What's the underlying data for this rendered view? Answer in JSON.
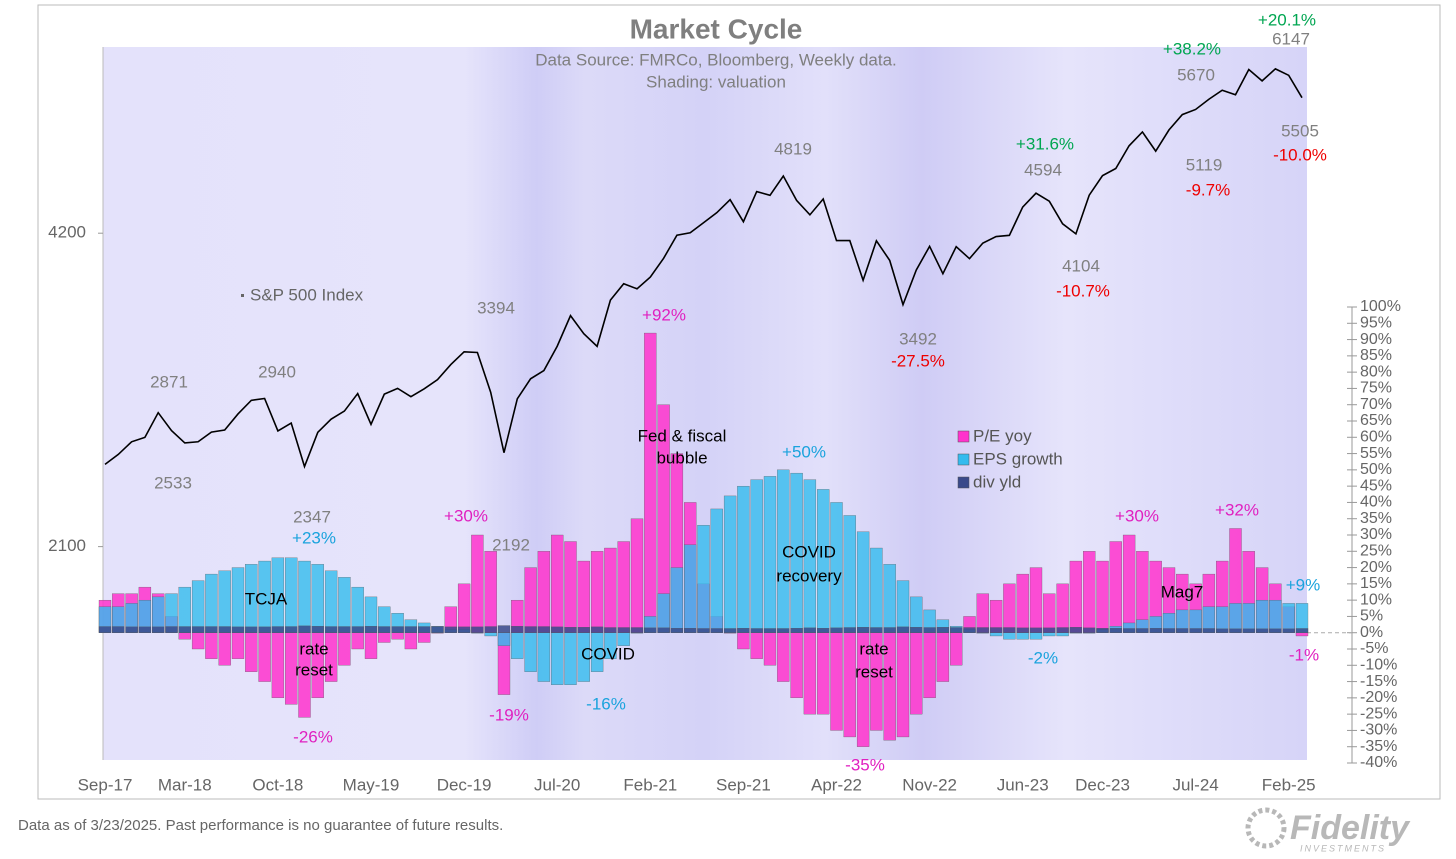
{
  "chart_data": {
    "type": "combo",
    "title": "Market Cycle",
    "subtitle": [
      "Data Source: FMRCo, Bloomberg,  Weekly data.",
      "Shading: valuation"
    ],
    "categories": [
      "Sep-17",
      null,
      null,
      null,
      null,
      null,
      "Mar-18",
      null,
      null,
      null,
      null,
      null,
      null,
      "Oct-18",
      null,
      null,
      null,
      null,
      null,
      null,
      "May-19",
      null,
      null,
      null,
      null,
      null,
      null,
      "Dec-19",
      null,
      null,
      null,
      null,
      null,
      null,
      "Jul-20",
      null,
      null,
      null,
      null,
      null,
      null,
      "Feb-21",
      null,
      null,
      null,
      null,
      null,
      null,
      "Sep-21",
      null,
      null,
      null,
      null,
      null,
      null,
      "Apr-22",
      null,
      null,
      null,
      null,
      null,
      null,
      "Nov-22",
      null,
      null,
      null,
      null,
      null,
      null,
      "Jun-23",
      null,
      null,
      null,
      null,
      null,
      "Dec-23",
      null,
      null,
      null,
      null,
      null,
      null,
      "Jul-24",
      null,
      null,
      null,
      null,
      null,
      null,
      "Feb-25",
      null
    ],
    "ylim": [
      1310,
      6340
    ],
    "ylog": true,
    "yticks": [
      2100,
      4200
    ],
    "y2lim": [
      -40,
      100
    ],
    "y2ticks": [
      {
        "value": -40,
        "label": "-40%"
      },
      {
        "value": -35,
        "label": "-35%"
      },
      {
        "value": -30,
        "label": "-30%"
      },
      {
        "value": -25,
        "label": "-25%"
      },
      {
        "value": -20,
        "label": "-20%"
      },
      {
        "value": -15,
        "label": "-15%"
      },
      {
        "value": -10,
        "label": "-10%"
      },
      {
        "value": -5,
        "label": "-5%"
      },
      {
        "value": 0,
        "label": "0%"
      },
      {
        "value": 5,
        "label": "5%"
      },
      {
        "value": 10,
        "label": "10%"
      },
      {
        "value": 15,
        "label": "15%"
      },
      {
        "value": 20,
        "label": "20%"
      },
      {
        "value": 25,
        "label": "25%"
      },
      {
        "value": 30,
        "label": "30%"
      },
      {
        "value": 35,
        "label": "35%"
      },
      {
        "value": 40,
        "label": "40%"
      },
      {
        "value": 45,
        "label": "45%"
      },
      {
        "value": 50,
        "label": "50%"
      },
      {
        "value": 55,
        "label": "55%"
      },
      {
        "value": 60,
        "label": "60%"
      },
      {
        "value": 65,
        "label": "65%"
      },
      {
        "value": 70,
        "label": "70%"
      },
      {
        "value": 75,
        "label": "75%"
      },
      {
        "value": 80,
        "label": "80%"
      },
      {
        "value": 85,
        "label": "85%"
      },
      {
        "value": 90,
        "label": "90%"
      },
      {
        "value": 95,
        "label": "95%"
      },
      {
        "value": 100,
        "label": "100%"
      }
    ],
    "series": [
      {
        "name": "S&P 500 Index",
        "type": "line",
        "color": "#000000",
        "values": [
          2519,
          2575,
          2648,
          2674,
          2824,
          2714,
          2641,
          2648,
          2705,
          2718,
          2816,
          2902,
          2914,
          2712,
          2760,
          2507,
          2704,
          2784,
          2834,
          2946,
          2752,
          2942,
          2980,
          2926,
          2977,
          3038,
          3141,
          3231,
          3226,
          2954,
          2585,
          2912,
          3044,
          3100,
          3271,
          3500,
          3363,
          3270,
          3622,
          3756,
          3714,
          3811,
          3973,
          4181,
          4204,
          4298,
          4395,
          4523,
          4308,
          4605,
          4567,
          4766,
          4516,
          4374,
          4530,
          4132,
          4132,
          3785,
          4130,
          3955,
          3586,
          3872,
          4080,
          3840,
          4077,
          3970,
          4109,
          4169,
          4180,
          4450,
          4589,
          4508,
          4288,
          4194,
          4568,
          4770,
          4846,
          5096,
          5254,
          5036,
          5278,
          5460,
          5522,
          5648,
          5762,
          5705,
          6032,
          5882,
          6041,
          5955,
          5668
        ]
      },
      {
        "name": "P/E yoy",
        "type": "bar",
        "axis": "y2",
        "color": "#ff33cc",
        "values": [
          10,
          12,
          12,
          14,
          12,
          5,
          -2,
          -5,
          -8,
          -10,
          -8,
          -12,
          -15,
          -20,
          -22,
          -26,
          -20,
          -15,
          -10,
          -5,
          -8,
          -3,
          -2,
          -5,
          -3,
          0,
          8,
          15,
          30,
          25,
          -19,
          10,
          20,
          25,
          30,
          28,
          22,
          25,
          26,
          28,
          35,
          92,
          70,
          55,
          40,
          15,
          5,
          0,
          -5,
          -8,
          -10,
          -15,
          -20,
          -25,
          -25,
          -30,
          -32,
          -35,
          -30,
          -33,
          -32,
          -25,
          -20,
          -15,
          -10,
          5,
          12,
          10,
          15,
          18,
          20,
          12,
          15,
          22,
          25,
          22,
          28,
          30,
          25,
          22,
          20,
          18,
          15,
          18,
          22,
          32,
          25,
          20,
          15,
          8,
          -1
        ]
      },
      {
        "name": "EPS growth",
        "type": "bar",
        "axis": "y2",
        "color": "#33bbee",
        "values": [
          8,
          8,
          9,
          10,
          11,
          12,
          14,
          16,
          18,
          19,
          20,
          21,
          22,
          23,
          23,
          22,
          21,
          19,
          17,
          14,
          11,
          8,
          6,
          4,
          3,
          2,
          1,
          1,
          0,
          -1,
          -4,
          -8,
          -12,
          -15,
          -16,
          -16,
          -15,
          -12,
          -8,
          -4,
          0,
          5,
          12,
          20,
          27,
          33,
          38,
          42,
          45,
          47,
          48,
          50,
          49,
          47,
          44,
          40,
          36,
          31,
          26,
          21,
          16,
          11,
          7,
          4,
          2,
          1,
          0,
          -1,
          -2,
          -2,
          -2,
          -1,
          -1,
          0,
          0,
          1,
          2,
          3,
          4,
          5,
          6,
          7,
          7,
          8,
          8,
          9,
          9,
          10,
          10,
          9,
          9
        ]
      },
      {
        "name": "div yld",
        "type": "bar",
        "axis": "y2",
        "color": "#3a4a8a",
        "values": [
          1.9,
          1.9,
          1.8,
          1.8,
          1.8,
          1.9,
          1.9,
          1.9,
          1.9,
          1.9,
          1.8,
          1.8,
          1.8,
          1.9,
          1.9,
          2.1,
          2.0,
          1.9,
          1.9,
          1.9,
          2.0,
          1.9,
          1.9,
          1.9,
          1.9,
          1.9,
          1.8,
          1.8,
          1.8,
          1.9,
          2.2,
          2.0,
          1.9,
          1.9,
          1.8,
          1.7,
          1.7,
          1.8,
          1.6,
          1.6,
          1.6,
          1.5,
          1.5,
          1.4,
          1.4,
          1.3,
          1.3,
          1.3,
          1.4,
          1.3,
          1.3,
          1.3,
          1.4,
          1.5,
          1.4,
          1.5,
          1.6,
          1.7,
          1.6,
          1.6,
          1.8,
          1.7,
          1.6,
          1.7,
          1.6,
          1.6,
          1.6,
          1.6,
          1.6,
          1.5,
          1.5,
          1.5,
          1.6,
          1.7,
          1.5,
          1.4,
          1.4,
          1.3,
          1.3,
          1.4,
          1.3,
          1.3,
          1.3,
          1.3,
          1.2,
          1.2,
          1.2,
          1.2,
          1.2,
          1.2,
          1.3
        ]
      }
    ],
    "annotations": [
      {
        "text": "2871",
        "color": "#808080"
      },
      {
        "text": "2533",
        "color": "#808080"
      },
      {
        "text": "2940",
        "color": "#808080"
      },
      {
        "text": "2347",
        "color": "#808080"
      },
      {
        "text": "3394",
        "color": "#808080"
      },
      {
        "text": "2192",
        "color": "#808080"
      },
      {
        "text": "4819",
        "color": "#808080"
      },
      {
        "text": "3492",
        "color": "#808080"
      },
      {
        "text": "-27.5%",
        "color": "#ee0000"
      },
      {
        "text": "4594",
        "color": "#808080"
      },
      {
        "text": "+31.6%",
        "color": "#00a651"
      },
      {
        "text": "4104",
        "color": "#808080"
      },
      {
        "text": "-10.7%",
        "color": "#ee0000"
      },
      {
        "text": "5670",
        "color": "#808080"
      },
      {
        "text": "+38.2%",
        "color": "#00a651"
      },
      {
        "text": "5119",
        "color": "#808080"
      },
      {
        "text": "-9.7%",
        "color": "#ee0000"
      },
      {
        "text": "6147",
        "color": "#808080"
      },
      {
        "text": "+20.1%",
        "color": "#00a651"
      },
      {
        "text": "5505",
        "color": "#808080"
      },
      {
        "text": "-10.0%",
        "color": "#ee0000"
      },
      {
        "text": "+23%",
        "color": "#1aa3dd"
      },
      {
        "text": "TCJA",
        "color": "#000000"
      },
      {
        "text": "rate",
        "color": "#000000"
      },
      {
        "text": "reset",
        "color": "#000000"
      },
      {
        "text": "-26%",
        "color": "#e020c0"
      },
      {
        "text": "+30%",
        "color": "#e020c0"
      },
      {
        "text": "-19%",
        "color": "#e020c0"
      },
      {
        "text": "COVID",
        "color": "#000000"
      },
      {
        "text": "-16%",
        "color": "#1aa3dd"
      },
      {
        "text": "+92%",
        "color": "#e020c0"
      },
      {
        "text": "Fed & fiscal",
        "color": "#000000"
      },
      {
        "text": "bubble",
        "color": "#000000"
      },
      {
        "text": "+50%",
        "color": "#1aa3dd"
      },
      {
        "text": "COVID",
        "color": "#000000"
      },
      {
        "text": "recovery",
        "color": "#000000"
      },
      {
        "text": "rate",
        "color": "#000000"
      },
      {
        "text": "reset",
        "color": "#000000"
      },
      {
        "text": "-35%",
        "color": "#e020c0"
      },
      {
        "text": "-2%",
        "color": "#1aa3dd"
      },
      {
        "text": "+30%",
        "color": "#e020c0"
      },
      {
        "text": "+32%",
        "color": "#e020c0"
      },
      {
        "text": "Mag7",
        "color": "#000000"
      },
      {
        "text": "+9%",
        "color": "#1aa3dd"
      },
      {
        "text": "-1%",
        "color": "#e020c0"
      }
    ]
  },
  "footer": "Data as of 3/23/2025. Past performance is no guarantee of future results.",
  "logo": {
    "name": "Fidelity",
    "tagline": "INVESTMENTS"
  }
}
